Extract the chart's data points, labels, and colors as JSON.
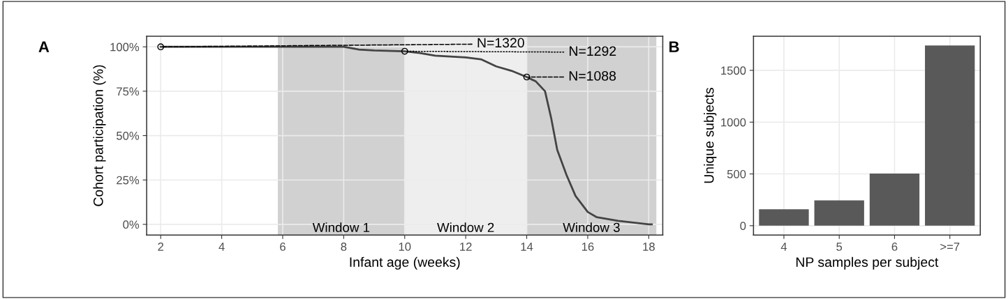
{
  "chart_data": [
    {
      "type": "line",
      "xlabel": "Infant age (weeks)",
      "ylabel": "Cohort participation (%)",
      "x": [
        2,
        4,
        6,
        8,
        8.5,
        9,
        10,
        10.5,
        11,
        12,
        12.5,
        13,
        13.5,
        14,
        14.3,
        14.6,
        14.8,
        15,
        15.3,
        15.6,
        16,
        16.3,
        17,
        17.5,
        18,
        18.1
      ],
      "series": [
        {
          "color": "#444444",
          "values": [
            100,
            100,
            100,
            100,
            98.5,
            98,
            97.5,
            96.5,
            95,
            94,
            93,
            89,
            86.5,
            83,
            80.5,
            75,
            60,
            42,
            28,
            16,
            7,
            4,
            2,
            1,
            0,
            0
          ]
        }
      ],
      "xlim": [
        1.54,
        18.46
      ],
      "ylim": [
        -6,
        106
      ],
      "xticks": [
        2,
        4,
        6,
        8,
        10,
        12,
        14,
        16,
        18
      ],
      "yticks": [
        {
          "value": 0,
          "label": "0%"
        },
        {
          "value": 25,
          "label": "25%"
        },
        {
          "value": 50,
          "label": "50%"
        },
        {
          "value": 75,
          "label": "75%"
        },
        {
          "value": 100,
          "label": "100%"
        }
      ],
      "bands": [
        {
          "axis": "x",
          "from": 5.84,
          "to": 10,
          "label": "Window 1",
          "color": "#d1d1d1"
        },
        {
          "axis": "x",
          "from": 10,
          "to": 14,
          "label": "Window 2",
          "color": "#eeeeee"
        },
        {
          "axis": "x",
          "from": 14,
          "to": 18.25,
          "label": "Window 3",
          "color": "#d1d1d1"
        }
      ],
      "annotations": [
        "A",
        {
          "text": "N=1320",
          "x": 2,
          "y": 100
        },
        {
          "text": "N=1292",
          "x": 10,
          "y": 97.5
        },
        {
          "text": "N=1088",
          "x": 14,
          "y": 83
        }
      ],
      "grid": true,
      "legend": false
    },
    {
      "type": "bar",
      "xlabel": "NP samples per subject",
      "ylabel": "Unique subjects",
      "categories": [
        "4",
        "5",
        "6",
        ">=7"
      ],
      "values": [
        158,
        244,
        504,
        1741
      ],
      "color": "#595959",
      "ylim": [
        -90,
        1830
      ],
      "yticks": [
        0,
        500,
        1000,
        1500
      ],
      "annotations": [
        "B"
      ],
      "grid": true,
      "legend": false
    }
  ]
}
